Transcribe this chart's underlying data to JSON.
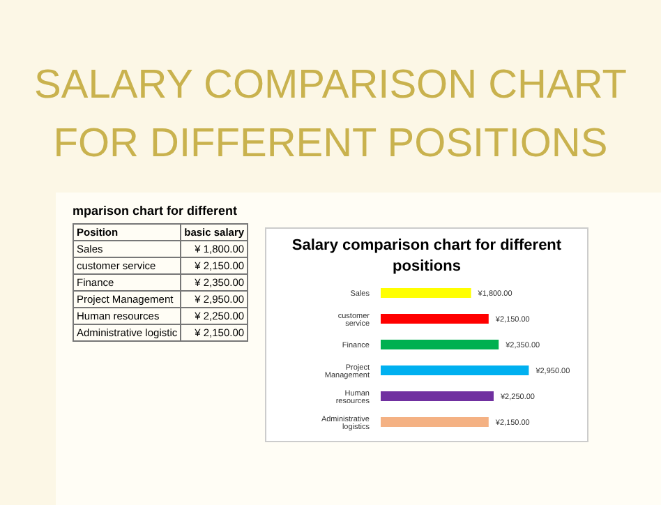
{
  "chart_data": [
    {
      "type": "other",
      "title": "SALARY COMPARISON CHART FOR DIFFERENT POSITIONS",
      "subtitle": "mparison chart for different",
      "annotations": [
        "Position",
        "basic salary",
        "Sales",
        "¥ 1,800.00",
        "customer service",
        "¥ 2,150.00",
        "Finance",
        "¥ 2,350.00",
        "Project Management",
        "¥ 2,950.00",
        "Human resources",
        "¥ 2,250.00",
        "Administrative logistic",
        "¥ 2,150.00"
      ]
    },
    {
      "type": "bar",
      "title": "Salary comparison chart for different positions",
      "orientation": "horizontal",
      "categories": [
        "Sales",
        "customer service",
        "Finance",
        "Project Management",
        "Human resources",
        "Administrative logistics"
      ],
      "values": [
        1800,
        2150,
        2350,
        2950,
        2250,
        2150
      ],
      "colors": [
        "#ffff00",
        "#ff0000",
        "#00b050",
        "#00b0f0",
        "#7030a0",
        "#f4b183"
      ],
      "value_labels": [
        "¥1,800.00",
        "¥2,150.00",
        "¥2,350.00",
        "¥2,950.00",
        "¥2,250.00",
        "¥2,150.00"
      ],
      "xlim": [
        0,
        3000
      ]
    }
  ]
}
